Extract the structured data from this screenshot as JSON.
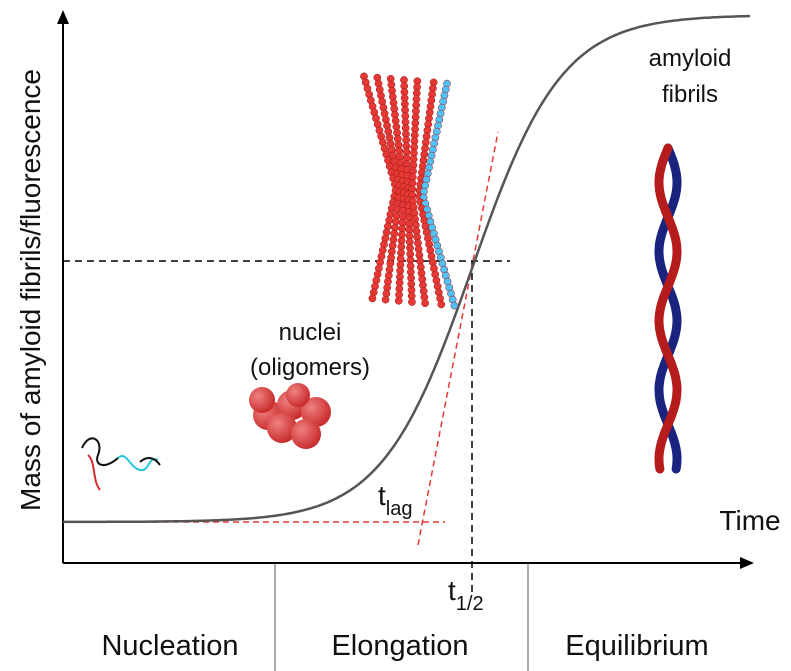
{
  "axes": {
    "y_label": "Mass of amyloid fibrils/fluorescence",
    "x_label": "Time"
  },
  "annotations": {
    "fibrils": [
      "amyloid",
      "fibrils"
    ],
    "nuclei": [
      "nuclei",
      "(oligomers)"
    ],
    "t_lag": {
      "main": "t",
      "sub": "lag"
    },
    "t_half": {
      "main": "t",
      "sub": "1/2"
    }
  },
  "phases": [
    "Nucleation",
    "Elongation",
    "Equilibrium"
  ]
}
